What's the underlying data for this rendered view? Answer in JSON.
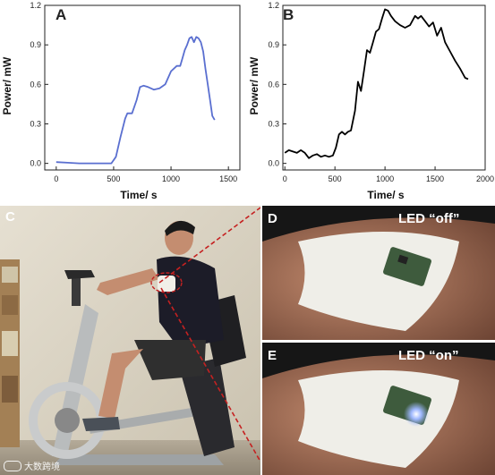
{
  "chart_data": [
    {
      "type": "line",
      "panel_label": "A",
      "xlabel": "Time/ s",
      "ylabel": "Power/ mW",
      "xlim": [
        -100,
        1600
      ],
      "ylim": [
        -0.05,
        1.2
      ],
      "xticks": [
        0,
        500,
        1000,
        1500
      ],
      "yticks": [
        0.0,
        0.3,
        0.6,
        0.9,
        1.2
      ],
      "xtick_labels": [
        "0",
        "500",
        "1000",
        "1500"
      ],
      "ytick_labels": [
        "0.0",
        "0.3",
        "0.6",
        "0.9",
        "1.2"
      ],
      "color": "#5a6fd0",
      "grid": false,
      "series": [
        {
          "x": [
            0,
            100,
            200,
            300,
            400,
            480,
            520,
            560,
            600,
            620,
            660,
            700,
            730,
            760,
            800,
            850,
            900,
            950,
            1000,
            1050,
            1080,
            1100,
            1120,
            1140,
            1160,
            1180,
            1200,
            1220,
            1240,
            1260,
            1280,
            1300,
            1320,
            1340,
            1360,
            1380
          ],
          "y": [
            0.01,
            0.005,
            0.0,
            0.0,
            0.0,
            0.0,
            0.05,
            0.2,
            0.34,
            0.38,
            0.38,
            0.48,
            0.58,
            0.59,
            0.58,
            0.56,
            0.57,
            0.6,
            0.7,
            0.74,
            0.74,
            0.8,
            0.86,
            0.9,
            0.95,
            0.96,
            0.92,
            0.96,
            0.95,
            0.92,
            0.85,
            0.72,
            0.6,
            0.48,
            0.36,
            0.33
          ]
        }
      ]
    },
    {
      "type": "line",
      "panel_label": "B",
      "xlabel": "Time/ s",
      "ylabel": "Power/ mW",
      "xlim": [
        -20,
        2000
      ],
      "ylim": [
        -0.05,
        1.2
      ],
      "xticks": [
        0,
        500,
        1000,
        1500,
        2000
      ],
      "yticks": [
        0.0,
        0.3,
        0.6,
        0.9,
        1.2
      ],
      "xtick_labels": [
        "0",
        "500",
        "1000",
        "1500",
        "2000"
      ],
      "ytick_labels": [
        "0.0",
        "0.3",
        "0.6",
        "0.9",
        "1.2"
      ],
      "color": "#000000",
      "grid": false,
      "series": [
        {
          "x": [
            0,
            40,
            80,
            120,
            160,
            200,
            240,
            280,
            320,
            360,
            400,
            440,
            480,
            510,
            540,
            570,
            600,
            630,
            660,
            700,
            730,
            760,
            790,
            820,
            850,
            880,
            910,
            940,
            970,
            1000,
            1030,
            1060,
            1100,
            1150,
            1200,
            1250,
            1300,
            1330,
            1360,
            1400,
            1440,
            1480,
            1520,
            1560,
            1600,
            1650,
            1700,
            1750,
            1800,
            1830
          ],
          "y": [
            0.08,
            0.1,
            0.09,
            0.08,
            0.1,
            0.08,
            0.04,
            0.06,
            0.07,
            0.05,
            0.06,
            0.05,
            0.06,
            0.12,
            0.22,
            0.24,
            0.22,
            0.24,
            0.25,
            0.4,
            0.62,
            0.55,
            0.7,
            0.86,
            0.84,
            0.92,
            1.0,
            1.02,
            1.1,
            1.17,
            1.16,
            1.12,
            1.08,
            1.05,
            1.03,
            1.05,
            1.12,
            1.1,
            1.12,
            1.08,
            1.04,
            1.07,
            0.97,
            1.03,
            0.92,
            0.85,
            0.78,
            0.72,
            0.65,
            0.64
          ]
        }
      ]
    }
  ],
  "figure": {
    "photo_c_label": "C",
    "photo_d_label": "D",
    "photo_e_label": "E",
    "photo_d_caption": "LED “off”",
    "photo_e_caption": "LED “on”",
    "watermark_text": "大数跨境",
    "photo_colors": {
      "wall": "#d9d3c4",
      "shirt": "#1c1c28",
      "shorts": "#2f2f2f",
      "bike_frame": "#b9bcbd",
      "skin": "#c48d70",
      "dashed_line": "#c52121",
      "armband": "#f1efe8",
      "led_glow": "#9fb8ff"
    }
  }
}
